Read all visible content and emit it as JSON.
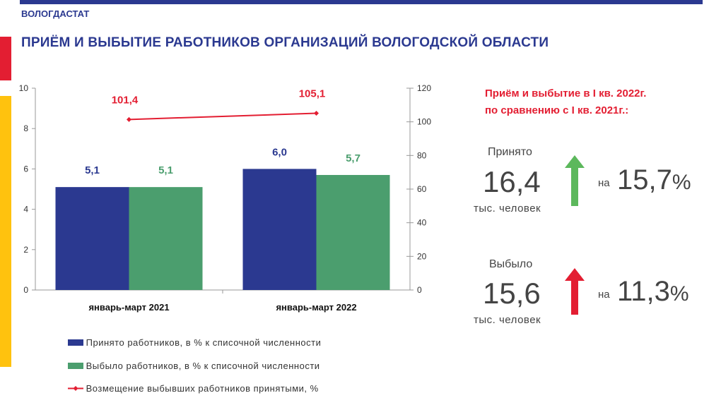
{
  "header": {
    "org": "ВОЛОГДАСТАТ",
    "title": "ПРИЁМ И ВЫБЫТИЕ РАБОТНИКОВ ОРГАНИЗАЦИЙ ВОЛОГОДСКОЙ ОБЛАСТИ"
  },
  "colors": {
    "navy": "#2b3990",
    "green": "#4b9e6e",
    "red": "#e31e32",
    "yellow": "#ffc20e",
    "arrow_green": "#5cb85c"
  },
  "chart_data": {
    "type": "bar",
    "categories": [
      "январь-март 2021",
      "январь-март 2022"
    ],
    "series": [
      {
        "name": "Принято работников, в % к списочной численности",
        "type": "bar",
        "axis": "left",
        "values": [
          5.1,
          6.0
        ],
        "labels": [
          "5,1",
          "6,0"
        ],
        "color": "#2b3990"
      },
      {
        "name": "Выбыло работников, в % к списочной численности",
        "type": "bar",
        "axis": "left",
        "values": [
          5.1,
          5.7
        ],
        "labels": [
          "5,1",
          "5,7"
        ],
        "color": "#4b9e6e"
      },
      {
        "name": "Возмещение выбывших работников принятыми, %",
        "type": "line",
        "axis": "right",
        "values": [
          101.4,
          105.1
        ],
        "labels": [
          "101,4",
          "105,1"
        ],
        "color": "#e31e32"
      }
    ],
    "y_left": {
      "min": 0,
      "max": 10,
      "ticks": [
        0,
        2,
        4,
        6,
        8,
        10
      ]
    },
    "y_right": {
      "min": 0,
      "max": 120,
      "ticks": [
        0,
        20,
        40,
        60,
        80,
        100,
        120
      ]
    },
    "grid": false,
    "legend_position": "bottom"
  },
  "panel": {
    "heading_line1": "Приём и выбытие в I кв. 2022г.",
    "heading_line2": "по сравнению с I кв. 2021г.:",
    "hired": {
      "label": "Принято",
      "value": "16,4",
      "unit": "тыс. человек",
      "na": "на",
      "change": "15,7",
      "pct": "%",
      "arrow": "up-arrow-icon"
    },
    "left": {
      "label": "Выбыло",
      "value": "15,6",
      "unit": "тыс. человек",
      "na": "на",
      "change": "11,3",
      "pct": "%",
      "arrow": "up-arrow-icon"
    }
  }
}
